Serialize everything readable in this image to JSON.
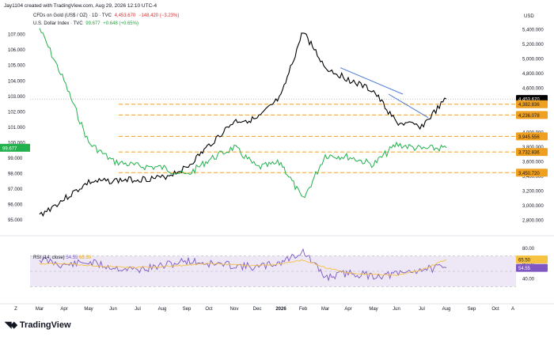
{
  "header": {
    "created_by": "Jay1104 created with TradingView.com, Aug 29, 2026 12:10 UTC-4"
  },
  "legend": {
    "gold": {
      "label": "CFDs on Gold (US$ / OZ) · 1D · TVC",
      "price": "4,453.670",
      "change": "−148.420 (−3.23%)"
    },
    "dxy": {
      "label": "U.S. Dollar Index · TVC",
      "price": "99.677",
      "change": "+0.648 (+0.65%)"
    },
    "rsi": {
      "label": "RSI (14, close)",
      "value": "54.55",
      "ma": "65.50"
    }
  },
  "axes": {
    "left_unit": "",
    "right_unit": "USD",
    "left_top_unit": "Z",
    "left_ticks": [
      "107.000",
      "106.000",
      "105.000",
      "104.000",
      "103.000",
      "102.000",
      "101.000",
      "100.000",
      "99.000",
      "98.000",
      "97.000",
      "96.000",
      "95.000"
    ],
    "left_tick_values": [
      107,
      106,
      105,
      104,
      103,
      102,
      101,
      100,
      99,
      98,
      97,
      96,
      95
    ],
    "right_ticks": [
      "5,400.000",
      "5,200.000",
      "5,000.000",
      "4,800.000",
      "4,600.000",
      "4,000.000",
      "3,800.000",
      "3,600.000",
      "3,400.000",
      "3,200.000",
      "3,000.000",
      "2,800.000"
    ],
    "right_tick_values": [
      5400,
      5200,
      5000,
      4800,
      4600,
      4000,
      3800,
      3600,
      3400,
      3200,
      3000,
      2800
    ],
    "x_ticks": [
      "Z",
      "Mar",
      "Apr",
      "May",
      "Jun",
      "Jul",
      "Aug",
      "Sep",
      "Oct",
      "Nov",
      "Dec",
      "2026",
      "Feb",
      "Mar",
      "Apr",
      "May",
      "Jun",
      "Jul",
      "Aug",
      "Sep",
      "Oct",
      "A"
    ],
    "rsi_ticks": [
      "80.00",
      "60.00",
      "40.00"
    ],
    "rsi_tick_values": [
      80,
      60,
      40
    ]
  },
  "price_labels": {
    "gold_last": "4,453.670",
    "dxy_last": "99.677",
    "levels": [
      "4,382.836",
      "4,236.078",
      "3,945.556",
      "3,732.836",
      "3,450.720"
    ],
    "rsi_value": "54.55",
    "rsi_ma": "65.50"
  },
  "colors": {
    "gold": "#000000",
    "dxy": "#22b14c",
    "trend": "#4a78d8",
    "levels": "#f0a020",
    "rsi": "#7e57c2",
    "rsi_ma": "#f5c242",
    "rsi_band": "#ede7f6"
  },
  "chart_data": {
    "type": "line",
    "title": "",
    "x_labels": [
      "Mar",
      "Apr",
      "May",
      "Jun",
      "Jul",
      "Aug",
      "Sep",
      "Oct",
      "Nov",
      "Dec",
      "2026",
      "Feb",
      "Mar",
      "Apr",
      "May",
      "Jun",
      "Jul",
      "Aug"
    ],
    "series": [
      {
        "name": "CFDs on Gold (US$ / OZ)",
        "axis": "right",
        "values": [
          2870,
          3090,
          3320,
          3340,
          3360,
          3380,
          3520,
          3820,
          4150,
          4180,
          4480,
          5380,
          4880,
          4720,
          4560,
          4130,
          4080,
          4453.67
        ]
      },
      {
        "name": "U.S. Dollar Index",
        "axis": "left",
        "values": [
          107.4,
          104.0,
          100.0,
          98.8,
          98.5,
          98.4,
          97.9,
          98.9,
          99.7,
          98.4,
          98.7,
          96.3,
          99.2,
          99.1,
          98.6,
          99.9,
          99.6,
          99.677
        ]
      }
    ],
    "rsi": {
      "name": "RSI (14, close)",
      "values": [
        66,
        58,
        62,
        55,
        52,
        57,
        64,
        60,
        58,
        55,
        62,
        76,
        42,
        48,
        44,
        46,
        53,
        54.55
      ],
      "ma_values": [
        60,
        60,
        58,
        56,
        55,
        56,
        58,
        60,
        59,
        57,
        60,
        65,
        55,
        48,
        46,
        45,
        52,
        65.5
      ],
      "ylim": [
        20,
        80
      ]
    },
    "horizontal_levels": [
      4382.836,
      4236.078,
      3945.556,
      3732.836,
      3450.72
    ],
    "trend_lines": [
      {
        "from": {
          "x": "Apr",
          "y": 4880
        },
        "to": {
          "x": "Jun",
          "y": 4520
        }
      },
      {
        "from": {
          "x": "Jun",
          "y": 4520
        },
        "to": {
          "x": "Jul",
          "y": 4200
        }
      }
    ],
    "ylim_left": [
      94.5,
      107.8
    ],
    "ylim_right": [
      2700,
      5500
    ],
    "xlabel": "",
    "ylabel": "USD",
    "grid": false,
    "legend": "top-left"
  }
}
